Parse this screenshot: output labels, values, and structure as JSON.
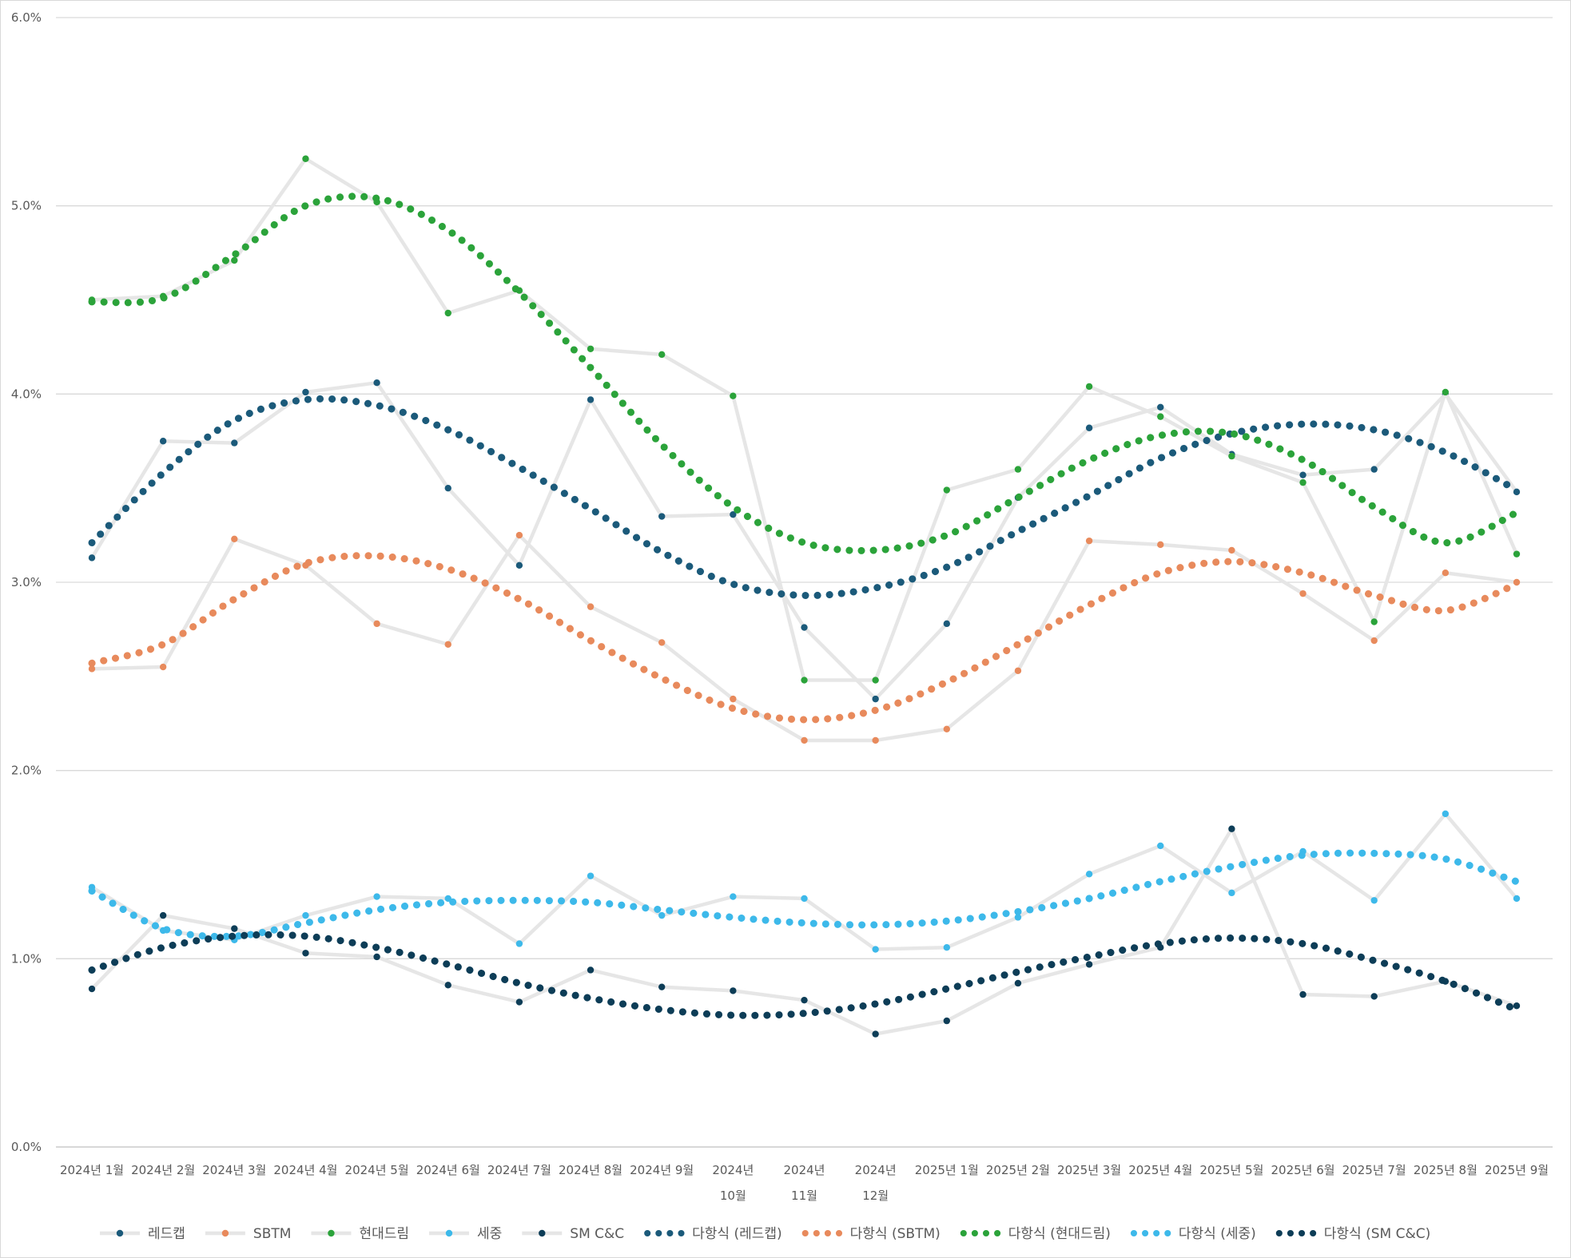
{
  "chart_data": {
    "type": "line",
    "title": "",
    "xlabel": "",
    "ylabel": "",
    "ylim": [
      0,
      6
    ],
    "yticks": [
      "0.0%",
      "1.0%",
      "2.0%",
      "3.0%",
      "4.0%",
      "5.0%",
      "6.0%"
    ],
    "grid": true,
    "legend_position": "bottom",
    "categories": [
      "2024년 1월",
      "2024년 2월",
      "2024년 3월",
      "2024년 4월",
      "2024년 5월",
      "2024년 6월",
      "2024년 7월",
      "2024년 8월",
      "2024년 9월",
      "2024년 10월",
      "2024년 11월",
      "2024년 12월",
      "2025년 1월",
      "2025년 2월",
      "2025년 3월",
      "2025년 4월",
      "2025년 5월",
      "2025년 6월",
      "2025년 7월",
      "2025년 8월",
      "2025년 9월"
    ],
    "category_lines": [
      [
        "2024년 1월"
      ],
      [
        "2024년 2월"
      ],
      [
        "2024년 3월"
      ],
      [
        "2024년 4월"
      ],
      [
        "2024년 5월"
      ],
      [
        "2024년 6월"
      ],
      [
        "2024년 7월"
      ],
      [
        "2024년 8월"
      ],
      [
        "2024년 9월"
      ],
      [
        "2024년",
        "10월"
      ],
      [
        "2024년",
        "11월"
      ],
      [
        "2024년",
        "12월"
      ],
      [
        "2025년 1월"
      ],
      [
        "2025년 2월"
      ],
      [
        "2025년 3월"
      ],
      [
        "2025년 4월"
      ],
      [
        "2025년 5월"
      ],
      [
        "2025년 6월"
      ],
      [
        "2025년 7월"
      ],
      [
        "2025년 8월"
      ],
      [
        "2025년 9월"
      ]
    ],
    "series": [
      {
        "name": "레드캡",
        "color": "#1b5a7a",
        "values": [
          3.13,
          3.75,
          3.74,
          4.01,
          4.06,
          3.5,
          3.09,
          3.97,
          3.35,
          3.36,
          2.76,
          2.38,
          2.78,
          3.45,
          3.82,
          3.93,
          3.68,
          3.57,
          3.6,
          4.0,
          3.48
        ]
      },
      {
        "name": "SBTM",
        "color": "#e88a5c",
        "values": [
          2.54,
          2.55,
          3.23,
          3.09,
          2.78,
          2.67,
          3.25,
          2.87,
          2.68,
          2.38,
          2.16,
          2.16,
          2.22,
          2.53,
          3.22,
          3.2,
          3.17,
          2.94,
          2.69,
          3.05,
          3.0
        ]
      },
      {
        "name": "현대드림",
        "color": "#2ba33a",
        "values": [
          4.5,
          4.52,
          4.71,
          5.25,
          5.02,
          4.43,
          4.55,
          4.24,
          4.21,
          3.99,
          2.48,
          2.48,
          3.49,
          3.6,
          4.04,
          3.88,
          3.67,
          3.53,
          2.79,
          4.01,
          3.15
        ]
      },
      {
        "name": "세중",
        "color": "#3db9ea",
        "values": [
          1.38,
          1.15,
          1.1,
          1.23,
          1.33,
          1.32,
          1.08,
          1.44,
          1.23,
          1.33,
          1.32,
          1.05,
          1.06,
          1.22,
          1.45,
          1.6,
          1.35,
          1.57,
          1.31,
          1.77,
          1.32
        ]
      },
      {
        "name": "SM C&C",
        "color": "#0d3d57",
        "values": [
          0.84,
          1.23,
          1.16,
          1.03,
          1.01,
          0.86,
          0.77,
          0.94,
          0.85,
          0.83,
          0.78,
          0.6,
          0.67,
          0.87,
          0.97,
          1.06,
          1.69,
          0.81,
          0.8,
          0.88,
          0.75
        ]
      }
    ],
    "trendlines": [
      {
        "name": "다항식 (레드캡)",
        "of": "레드캡",
        "type": "polynomial",
        "color": "#1b5a7a",
        "values": [
          3.21,
          3.58,
          3.86,
          3.97,
          3.94,
          3.81,
          3.61,
          3.39,
          3.16,
          2.99,
          2.93,
          2.97,
          3.08,
          3.27,
          3.46,
          3.66,
          3.79,
          3.84,
          3.81,
          3.69,
          3.49
        ]
      },
      {
        "name": "다항식 (SBTM)",
        "of": "SBTM",
        "type": "polynomial",
        "color": "#e88a5c",
        "values": [
          2.57,
          2.67,
          2.91,
          3.1,
          3.14,
          3.07,
          2.91,
          2.69,
          2.49,
          2.33,
          2.27,
          2.32,
          2.47,
          2.67,
          2.88,
          3.05,
          3.11,
          3.05,
          2.93,
          2.85,
          2.99
        ]
      },
      {
        "name": "다항식 (현대드림)",
        "of": "현대드림",
        "type": "polynomial",
        "color": "#2ba33a",
        "values": [
          4.49,
          4.51,
          4.74,
          5.0,
          5.04,
          4.87,
          4.54,
          4.14,
          3.73,
          3.4,
          3.21,
          3.17,
          3.25,
          3.45,
          3.65,
          3.78,
          3.79,
          3.65,
          3.4,
          3.21,
          3.37
        ]
      },
      {
        "name": "다항식 (세중)",
        "of": "세중",
        "type": "polynomial",
        "color": "#3db9ea",
        "values": [
          1.36,
          1.16,
          1.12,
          1.19,
          1.26,
          1.3,
          1.31,
          1.3,
          1.26,
          1.22,
          1.19,
          1.18,
          1.2,
          1.25,
          1.32,
          1.41,
          1.49,
          1.55,
          1.56,
          1.53,
          1.41
        ]
      },
      {
        "name": "다항식 (SM C&C)",
        "of": "SM C&C",
        "type": "polynomial",
        "color": "#0d3d57",
        "values": [
          0.94,
          1.06,
          1.12,
          1.12,
          1.06,
          0.97,
          0.87,
          0.79,
          0.73,
          0.7,
          0.71,
          0.76,
          0.84,
          0.93,
          1.01,
          1.08,
          1.11,
          1.08,
          0.99,
          0.88,
          0.73
        ]
      }
    ],
    "legend": [
      "레드캡",
      "SBTM",
      "현대드림",
      "세중",
      "SM C&C",
      "다항식 (레드캡)",
      "다항식 (SBTM)",
      "다항식 (현대드림)",
      "다항식 (세중)",
      "다항식 (SM C&C)"
    ]
  }
}
